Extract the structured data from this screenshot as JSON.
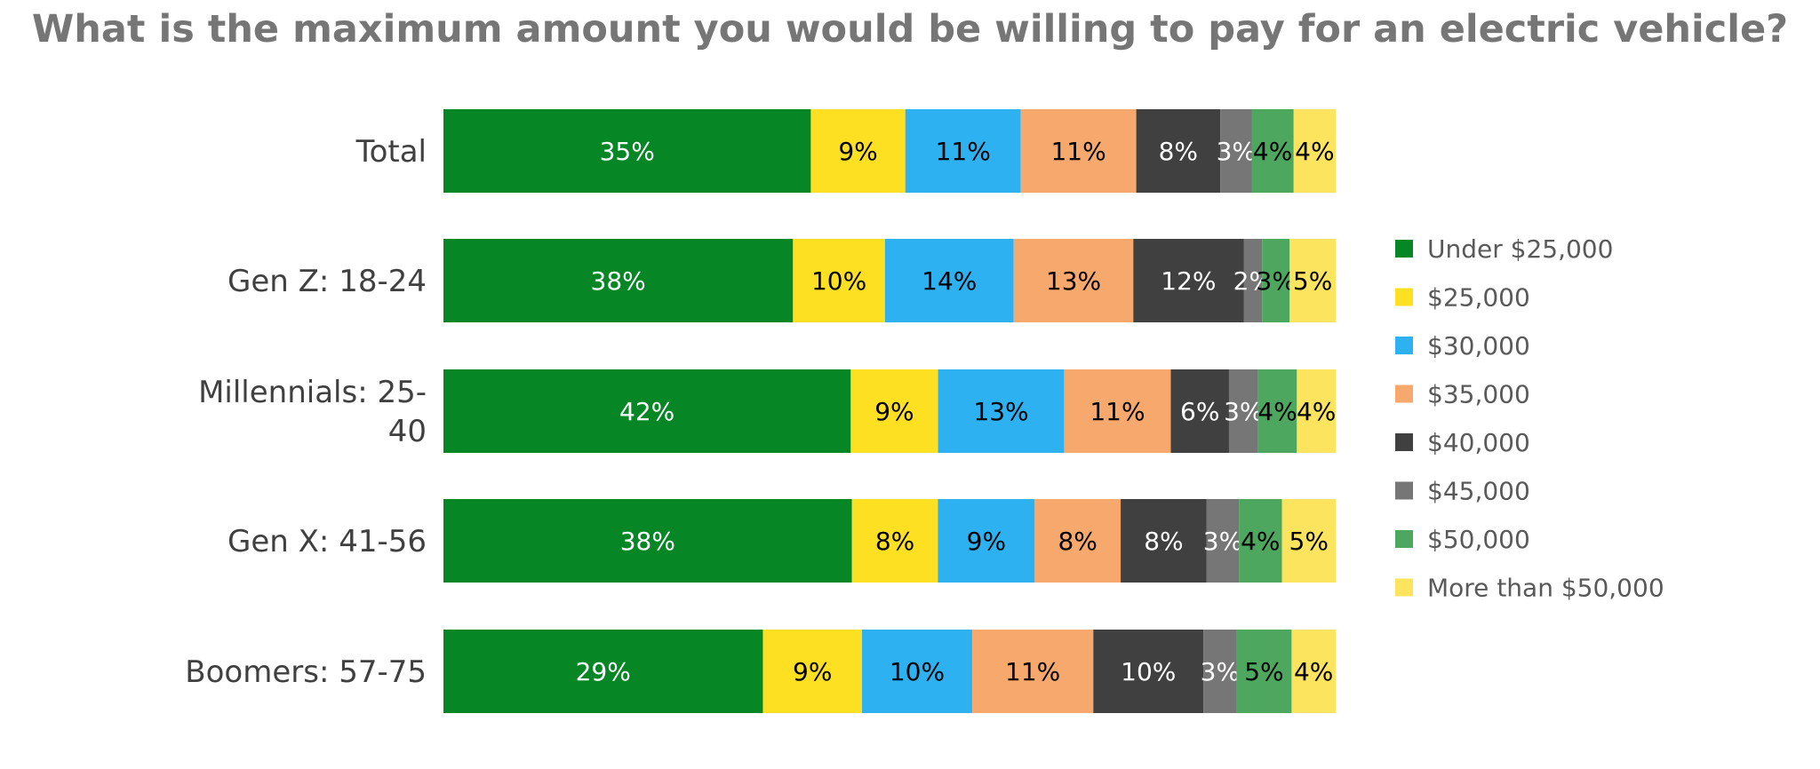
{
  "chart_data": {
    "type": "bar",
    "orientation": "horizontal",
    "stacked": true,
    "title": "What is the maximum amount you would be willing to pay for an electric vehicle?",
    "categories": [
      "Total",
      "Gen Z: 18-24",
      "Millennials: 25-40",
      "Gen X: 41-56",
      "Boomers: 57-75"
    ],
    "category_lines": [
      [
        "Total"
      ],
      [
        "Gen Z: 18-24"
      ],
      [
        "Millennials: 25-",
        "40"
      ],
      [
        "Gen X: 41-56"
      ],
      [
        "Boomers: 57-75"
      ]
    ],
    "series": [
      {
        "name": "Under $25,000",
        "color": "#068625",
        "label_color": "#ffffff",
        "values": [
          35,
          38,
          42,
          38,
          29
        ],
        "labels": [
          "35%",
          "38%",
          "42%",
          "38%",
          "29%"
        ]
      },
      {
        "name": "$25,000",
        "color": "#fde021",
        "label_color": "#000000",
        "values": [
          9,
          10,
          9,
          8,
          9
        ],
        "labels": [
          "9%",
          "10%",
          "9%",
          "8%",
          "9%"
        ]
      },
      {
        "name": "$30,000",
        "color": "#2eb1f0",
        "label_color": "#000000",
        "values": [
          11,
          14,
          13,
          9,
          10
        ],
        "labels": [
          "11%",
          "14%",
          "13%",
          "9%",
          "10%"
        ]
      },
      {
        "name": "$35,000",
        "color": "#f7a86d",
        "label_color": "#000000",
        "values": [
          11,
          13,
          11,
          8,
          11
        ],
        "labels": [
          "11%",
          "13%",
          "11%",
          "8%",
          "11%"
        ]
      },
      {
        "name": "$40,000",
        "color": "#404040",
        "label_color": "#ffffff",
        "values": [
          8,
          12,
          6,
          8,
          10
        ],
        "labels": [
          "8%",
          "12%",
          "6%",
          "8%",
          "10%"
        ]
      },
      {
        "name": "$45,000",
        "color": "#767676",
        "label_color": "#ffffff",
        "values": [
          3,
          2,
          3,
          3,
          3
        ],
        "labels": [
          "3%",
          "2%",
          "3%",
          "3%",
          "3%"
        ]
      },
      {
        "name": "$50,000",
        "color": "#4ea75f",
        "label_color": "#000000",
        "values": [
          4,
          3,
          4,
          4,
          5
        ],
        "labels": [
          "4%",
          "3%",
          "4%",
          "4%",
          "5%"
        ]
      },
      {
        "name": "More than $50,000",
        "color": "#fde45e",
        "label_color": "#000000",
        "values": [
          4,
          5,
          4,
          5,
          4
        ],
        "labels": [
          "4%",
          "5%",
          "4%",
          "5%",
          "4%"
        ]
      }
    ],
    "legend_position": "right",
    "grid": false
  }
}
